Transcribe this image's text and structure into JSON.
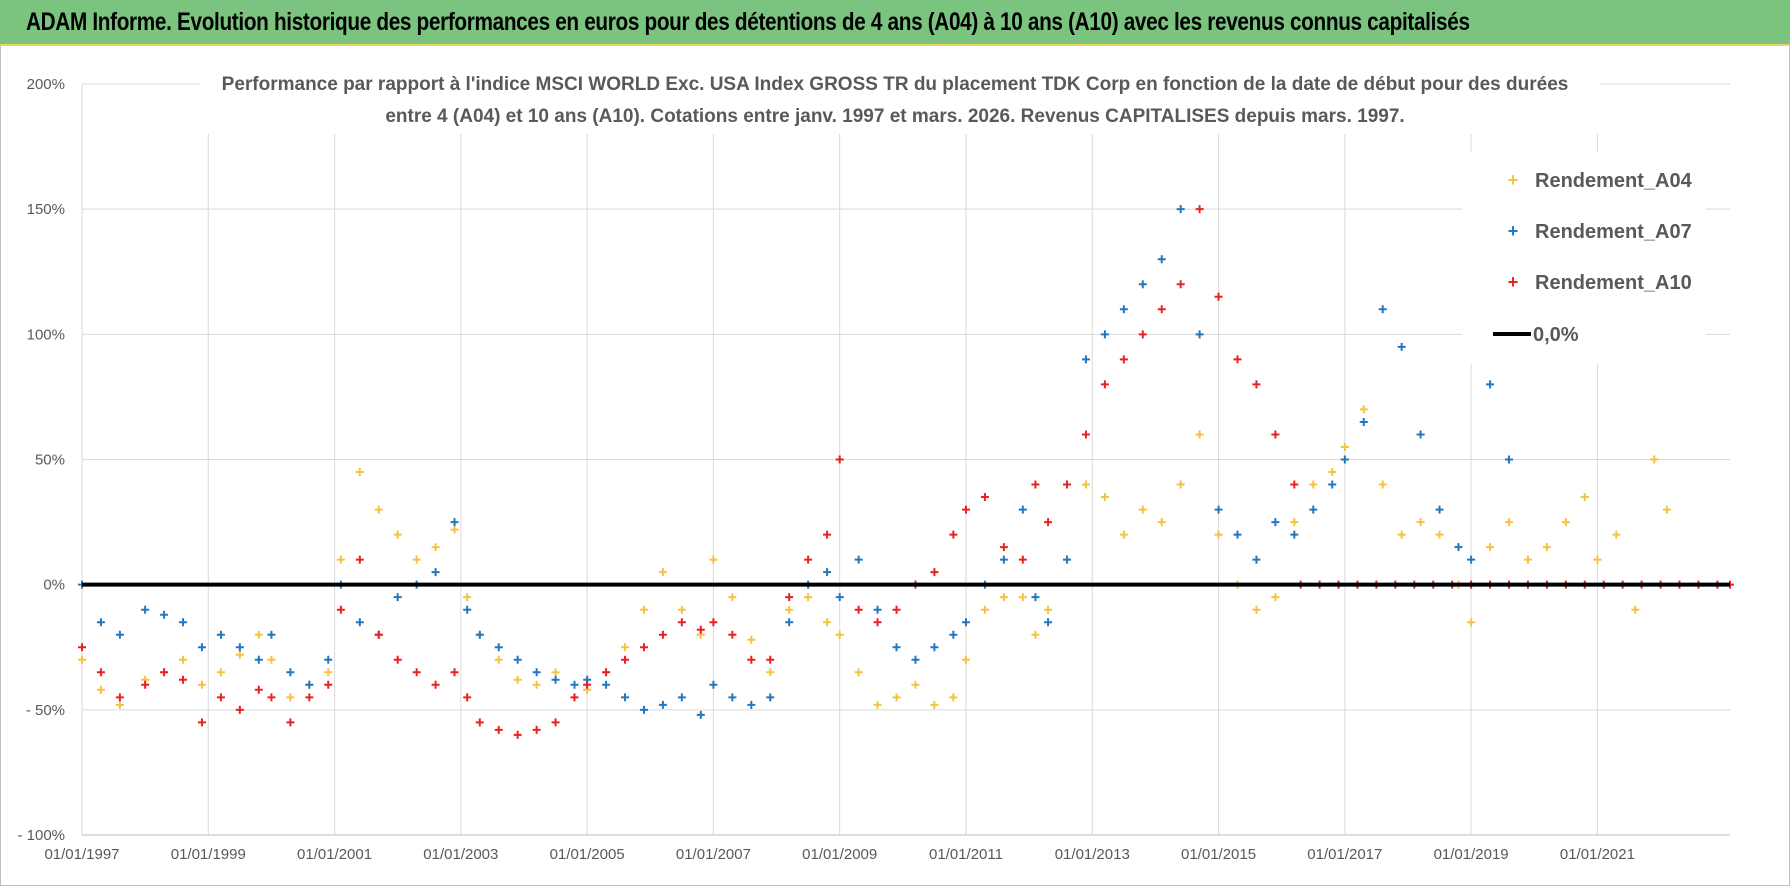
{
  "banner": {
    "title": "ADAM Informe. Evolution historique des performances en euros pour des détentions de 4 ans (A04) à 10 ans (A10) avec les revenus connus capitalisés"
  },
  "colors": {
    "banner_bg": "#7ac47f",
    "A04": "#f5c242",
    "A07": "#1f78c1",
    "A10": "#e8231f",
    "zero_line": "#000000",
    "grid": "#d9d9d9",
    "text": "#595959"
  },
  "chart_data": {
    "type": "scatter",
    "title_lines": [
      "Performance par rapport à l'indice MSCI WORLD Exc. USA Index GROSS TR  du placement TDK Corp en fonction de la date de début pour des durées",
      "entre 4 (A04) et 10 ans (A10).  Cotations entre janv. 1997 et mars. 2026.  Revenus CAPITALISES depuis mars. 1997."
    ],
    "x_range": [
      1997.0,
      2023.1
    ],
    "x_ticks": [
      {
        "label": "01/01/1997",
        "value": 1997
      },
      {
        "label": "01/01/1999",
        "value": 1999
      },
      {
        "label": "01/01/2001",
        "value": 2001
      },
      {
        "label": "01/01/2003",
        "value": 2003
      },
      {
        "label": "01/01/2005",
        "value": 2005
      },
      {
        "label": "01/01/2007",
        "value": 2007
      },
      {
        "label": "01/01/2009",
        "value": 2009
      },
      {
        "label": "01/01/2011",
        "value": 2011
      },
      {
        "label": "01/01/2013",
        "value": 2013
      },
      {
        "label": "01/01/2015",
        "value": 2015
      },
      {
        "label": "01/01/2017",
        "value": 2017
      },
      {
        "label": "01/01/2019",
        "value": 2019
      },
      {
        "label": "01/01/2021",
        "value": 2021
      }
    ],
    "y_range": [
      -100,
      200
    ],
    "y_ticks": [
      {
        "label": "200%",
        "value": 200
      },
      {
        "label": "150%",
        "value": 150
      },
      {
        "label": "100%",
        "value": 100
      },
      {
        "label": "50%",
        "value": 50
      },
      {
        "label": "0%",
        "value": 0
      },
      {
        "label": "- 50%",
        "value": -50
      },
      {
        "label": "- 100%",
        "value": -100
      }
    ],
    "legend": [
      {
        "key": "A04",
        "label": "Rendement_A04",
        "marker": "+"
      },
      {
        "key": "A07",
        "label": "Rendement_A07",
        "marker": "+"
      },
      {
        "key": "A10",
        "label": "Rendement_A10",
        "marker": "+"
      },
      {
        "key": "zero",
        "label": "0,0%",
        "marker": "line"
      }
    ],
    "series": [
      {
        "name": "Rendement_A04",
        "key": "A04",
        "x": [
          1997.0,
          1997.3,
          1997.6,
          1998.0,
          1998.3,
          1998.6,
          1998.9,
          1999.2,
          1999.5,
          1999.8,
          2000.0,
          2000.3,
          2000.6,
          2000.9,
          2001.1,
          2001.4,
          2001.7,
          2002.0,
          2002.3,
          2002.6,
          2002.9,
          2003.1,
          2003.3,
          2003.6,
          2003.9,
          2004.2,
          2004.5,
          2004.8,
          2005.0,
          2005.3,
          2005.6,
          2005.9,
          2006.2,
          2006.5,
          2006.8,
          2007.0,
          2007.3,
          2007.6,
          2007.9,
          2008.2,
          2008.5,
          2008.8,
          2009.0,
          2009.3,
          2009.6,
          2009.9,
          2010.2,
          2010.5,
          2010.8,
          2011.0,
          2011.3,
          2011.6,
          2011.9,
          2012.1,
          2012.3,
          2012.6,
          2012.9,
          2013.2,
          2013.5,
          2013.8,
          2014.1,
          2014.4,
          2014.7,
          2015.0,
          2015.3,
          2015.6,
          2015.9,
          2016.2,
          2016.5,
          2016.8,
          2017.0,
          2017.3,
          2017.6,
          2017.9,
          2018.2,
          2018.5,
          2018.8,
          2019.0,
          2019.3,
          2019.6,
          2019.9,
          2020.2,
          2020.5,
          2020.8,
          2021.0,
          2021.3,
          2021.6,
          2021.9,
          2022.1
        ],
        "values": [
          -30,
          -42,
          -48,
          -38,
          -35,
          -30,
          -40,
          -35,
          -28,
          -20,
          -30,
          -45,
          -40,
          -35,
          10,
          45,
          30,
          20,
          10,
          15,
          22,
          -5,
          -20,
          -30,
          -38,
          -40,
          -35,
          -45,
          -42,
          -35,
          -25,
          -10,
          5,
          -10,
          -20,
          10,
          -5,
          -22,
          -35,
          -10,
          -5,
          -15,
          -20,
          -35,
          -48,
          -45,
          -40,
          -48,
          -45,
          -30,
          -10,
          -5,
          -5,
          -20,
          -10,
          10,
          40,
          35,
          20,
          30,
          25,
          40,
          60,
          20,
          0,
          -10,
          -5,
          25,
          40,
          45,
          55,
          70,
          40,
          20,
          25,
          20,
          0,
          -15,
          15,
          25,
          10,
          15,
          25,
          35,
          10,
          20,
          -10,
          50,
          30
        ]
      },
      {
        "name": "Rendement_A07",
        "key": "A07",
        "x": [
          1997.0,
          1997.3,
          1997.6,
          1998.0,
          1998.3,
          1998.6,
          1998.9,
          1999.2,
          1999.5,
          1999.8,
          2000.0,
          2000.3,
          2000.6,
          2000.9,
          2001.1,
          2001.4,
          2001.7,
          2002.0,
          2002.3,
          2002.6,
          2002.9,
          2003.1,
          2003.3,
          2003.6,
          2003.9,
          2004.2,
          2004.5,
          2004.8,
          2005.0,
          2005.3,
          2005.6,
          2005.9,
          2006.2,
          2006.5,
          2006.8,
          2007.0,
          2007.3,
          2007.6,
          2007.9,
          2008.2,
          2008.5,
          2008.8,
          2009.0,
          2009.3,
          2009.6,
          2009.9,
          2010.2,
          2010.5,
          2010.8,
          2011.0,
          2011.3,
          2011.6,
          2011.9,
          2012.1,
          2012.3,
          2012.6,
          2012.9,
          2013.2,
          2013.5,
          2013.8,
          2014.1,
          2014.4,
          2014.7,
          2015.0,
          2015.3,
          2015.6,
          2015.9,
          2016.2,
          2016.5,
          2016.8,
          2017.0,
          2017.3,
          2017.6,
          2017.9,
          2018.2,
          2018.5,
          2018.8,
          2019.0,
          2019.3,
          2019.6
        ],
        "values": [
          0,
          -15,
          -20,
          -10,
          -12,
          -15,
          -25,
          -20,
          -25,
          -30,
          -20,
          -35,
          -40,
          -30,
          0,
          -15,
          -20,
          -5,
          0,
          5,
          25,
          -10,
          -20,
          -25,
          -30,
          -35,
          -38,
          -40,
          -38,
          -40,
          -45,
          -50,
          -48,
          -45,
          -52,
          -40,
          -45,
          -48,
          -45,
          -15,
          0,
          5,
          -5,
          10,
          -10,
          -25,
          -30,
          -25,
          -20,
          -15,
          0,
          10,
          30,
          -5,
          -15,
          10,
          90,
          100,
          110,
          120,
          130,
          150,
          100,
          30,
          20,
          10,
          25,
          20,
          30,
          40,
          50,
          65,
          110,
          95,
          60,
          30,
          15,
          10,
          80,
          50
        ]
      },
      {
        "name": "Rendement_A10",
        "key": "A10",
        "x": [
          1997.0,
          1997.3,
          1997.6,
          1998.0,
          1998.3,
          1998.6,
          1998.9,
          1999.2,
          1999.5,
          1999.8,
          2000.0,
          2000.3,
          2000.6,
          2000.9,
          2001.1,
          2001.4,
          2001.7,
          2002.0,
          2002.3,
          2002.6,
          2002.9,
          2003.1,
          2003.3,
          2003.6,
          2003.9,
          2004.2,
          2004.5,
          2004.8,
          2005.0,
          2005.3,
          2005.6,
          2005.9,
          2006.2,
          2006.5,
          2006.8,
          2007.0,
          2007.3,
          2007.6,
          2007.9,
          2008.2,
          2008.5,
          2008.8,
          2009.0,
          2009.3,
          2009.6,
          2009.9,
          2010.2,
          2010.5,
          2010.8,
          2011.0,
          2011.3,
          2011.6,
          2011.9,
          2012.1,
          2012.3,
          2012.6,
          2012.9,
          2013.2,
          2013.5,
          2013.8,
          2014.1,
          2014.4,
          2014.7,
          2015.0,
          2015.3,
          2015.6,
          2015.9,
          2016.2
        ],
        "values": [
          -25,
          -35,
          -45,
          -40,
          -35,
          -38,
          -55,
          -45,
          -50,
          -42,
          -45,
          -55,
          -45,
          -40,
          -10,
          10,
          -20,
          -30,
          -35,
          -40,
          -35,
          -45,
          -55,
          -58,
          -60,
          -58,
          -55,
          -45,
          -40,
          -35,
          -30,
          -25,
          -20,
          -15,
          -18,
          -15,
          -20,
          -30,
          -30,
          -5,
          10,
          20,
          50,
          -10,
          -15,
          -10,
          0,
          5,
          20,
          30,
          35,
          15,
          10,
          40,
          25,
          40,
          60,
          80,
          90,
          100,
          110,
          120,
          150,
          115,
          90,
          80,
          60,
          40
        ]
      },
      {
        "name": "Rendement_A10 (0%)",
        "key": "A10",
        "x": [
          2016.3,
          2016.6,
          2016.9,
          2017.2,
          2017.5,
          2017.8,
          2018.1,
          2018.4,
          2018.7,
          2019.0,
          2019.3,
          2019.6,
          2019.9,
          2020.2,
          2020.5,
          2020.8,
          2021.1,
          2021.4,
          2021.7,
          2022.0,
          2022.3,
          2022.6,
          2022.9,
          2023.1
        ],
        "values": [
          0,
          0,
          0,
          0,
          0,
          0,
          0,
          0,
          0,
          0,
          0,
          0,
          0,
          0,
          0,
          0,
          0,
          0,
          0,
          0,
          0,
          0,
          0,
          0
        ]
      }
    ],
    "reference_line": {
      "label": "0,0%",
      "value": 0
    }
  }
}
